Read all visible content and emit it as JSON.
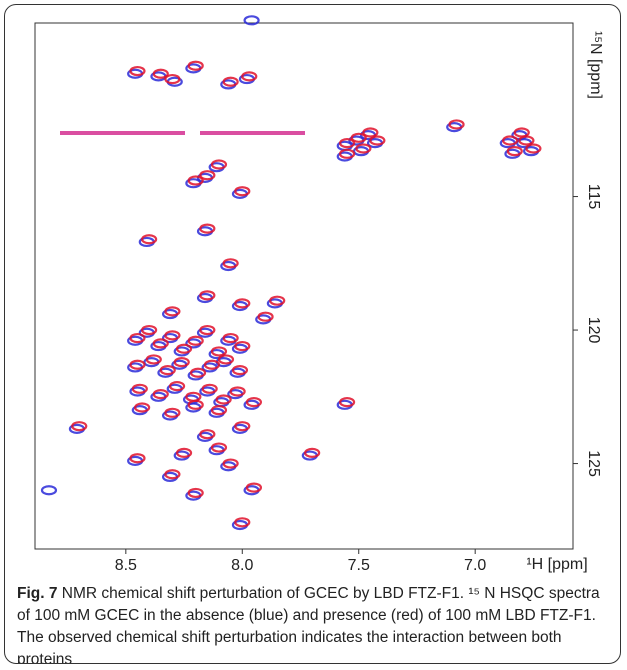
{
  "chart_data": {
    "type": "nmr",
    "x_label": "¹H [ppm]",
    "y_label": "¹⁵N [ppm]",
    "xlim": [
      8.89,
      6.58
    ],
    "ylim": [
      108.5,
      128.2
    ],
    "xticks": [
      8.5,
      {
        "value": 8,
        "label": "8.0"
      },
      7.5,
      {
        "value": 7,
        "label": "7.0"
      }
    ],
    "yticks": [
      115,
      120,
      125
    ],
    "peaks": [
      {
        "color": "#2a2ad8",
        "x": [
          7.96,
          8.46,
          8.36,
          8.29,
          8.21,
          8.06,
          7.98,
          7.56,
          7.51,
          7.46,
          7.43,
          7.56,
          7.49,
          6.86,
          6.81,
          6.84,
          6.79,
          6.76,
          7.09,
          8.11,
          8.16,
          8.01,
          8.21,
          8.16,
          8.41,
          8.06,
          8.16,
          8.31,
          8.01,
          7.86,
          7.91,
          8.46,
          8.41,
          8.36,
          8.31,
          8.26,
          8.21,
          8.16,
          8.11,
          8.06,
          8.01,
          8.46,
          8.39,
          8.33,
          8.27,
          8.2,
          8.14,
          8.08,
          8.02,
          8.45,
          8.36,
          8.29,
          8.22,
          8.15,
          8.09,
          8.03,
          7.96,
          8.44,
          8.31,
          8.21,
          8.11,
          8.46,
          8.26,
          8.11,
          8.06,
          8.16,
          8.01,
          8.31,
          7.71,
          8.21,
          7.96,
          8.01,
          8.83,
          8.71,
          7.56
        ],
        "y": [
          108.4,
          110.4,
          110.5,
          110.7,
          110.2,
          110.8,
          110.6,
          113.1,
          112.9,
          112.7,
          113.0,
          113.5,
          113.3,
          113.0,
          112.7,
          113.4,
          113.0,
          113.3,
          112.4,
          113.9,
          114.3,
          114.9,
          114.5,
          116.3,
          116.7,
          117.6,
          118.8,
          119.4,
          119.1,
          119.0,
          119.6,
          120.4,
          120.1,
          120.6,
          120.3,
          120.8,
          120.5,
          120.1,
          120.9,
          120.4,
          120.7,
          121.4,
          121.2,
          121.6,
          121.3,
          121.7,
          121.4,
          121.2,
          121.6,
          122.3,
          122.5,
          122.2,
          122.6,
          122.3,
          122.7,
          122.4,
          122.8,
          123.0,
          123.2,
          122.9,
          123.1,
          124.9,
          124.7,
          124.5,
          125.1,
          124.0,
          123.7,
          125.5,
          124.7,
          126.2,
          126.0,
          127.3,
          126.0,
          123.7,
          122.8
        ]
      },
      {
        "color": "#e0102a",
        "x": [
          8.45,
          8.35,
          8.3,
          8.2,
          8.05,
          7.97,
          7.55,
          7.5,
          7.45,
          7.42,
          7.55,
          7.48,
          6.85,
          6.8,
          6.83,
          6.78,
          6.75,
          7.08,
          8.1,
          8.15,
          8.0,
          8.2,
          8.15,
          8.4,
          8.05,
          8.15,
          8.3,
          8.0,
          7.85,
          7.9,
          8.45,
          8.4,
          8.35,
          8.3,
          8.25,
          8.2,
          8.15,
          8.1,
          8.05,
          8.0,
          8.45,
          8.38,
          8.32,
          8.26,
          8.19,
          8.13,
          8.07,
          8.01,
          8.44,
          8.35,
          8.28,
          8.21,
          8.14,
          8.08,
          8.02,
          7.95,
          8.43,
          8.3,
          8.2,
          8.1,
          8.45,
          8.25,
          8.1,
          8.05,
          8.15,
          8.0,
          8.3,
          7.7,
          8.2,
          7.95,
          8.0,
          8.7,
          7.55
        ],
        "y": [
          110.3,
          110.4,
          110.6,
          110.1,
          110.7,
          110.5,
          113.0,
          112.8,
          112.6,
          112.9,
          113.4,
          113.2,
          112.9,
          112.6,
          113.3,
          112.9,
          113.2,
          112.3,
          113.8,
          114.2,
          114.8,
          114.4,
          116.2,
          116.6,
          117.5,
          118.7,
          119.3,
          119.0,
          118.9,
          119.5,
          120.3,
          120.0,
          120.5,
          120.2,
          120.7,
          120.4,
          120.0,
          120.8,
          120.3,
          120.6,
          121.3,
          121.1,
          121.5,
          121.2,
          121.6,
          121.3,
          121.1,
          121.5,
          122.2,
          122.4,
          122.1,
          122.5,
          122.2,
          122.6,
          122.3,
          122.7,
          122.9,
          123.1,
          122.8,
          123.0,
          124.8,
          124.6,
          124.4,
          125.0,
          123.9,
          123.6,
          125.4,
          124.6,
          126.1,
          125.9,
          127.2,
          123.6,
          122.7
        ]
      }
    ]
  },
  "caption": {
    "label": "Fig. 7",
    "text": " NMR chemical shift perturbation of GCEC by LBD FTZ-F1. ¹⁵ N HSQC spectra of 100 mM GCEC in the absence (blue) and presence (red) of 100 mM LBD FTZ-F1. The observed chemical shift perturbation indicates the interaction between both proteins"
  }
}
